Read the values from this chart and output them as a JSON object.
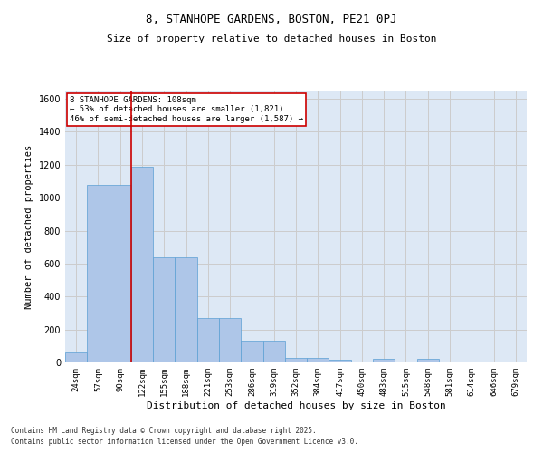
{
  "title1": "8, STANHOPE GARDENS, BOSTON, PE21 0PJ",
  "title2": "Size of property relative to detached houses in Boston",
  "xlabel": "Distribution of detached houses by size in Boston",
  "ylabel": "Number of detached properties",
  "bin_labels": [
    "24sqm",
    "57sqm",
    "90sqm",
    "122sqm",
    "155sqm",
    "188sqm",
    "221sqm",
    "253sqm",
    "286sqm",
    "319sqm",
    "352sqm",
    "384sqm",
    "417sqm",
    "450sqm",
    "483sqm",
    "515sqm",
    "548sqm",
    "581sqm",
    "614sqm",
    "646sqm",
    "679sqm"
  ],
  "bar_values": [
    60,
    1080,
    1080,
    1190,
    640,
    640,
    270,
    270,
    130,
    130,
    30,
    30,
    15,
    0,
    20,
    0,
    20,
    0,
    0,
    0,
    0
  ],
  "bar_color": "#aec6e8",
  "bar_edge_color": "#5a9fd4",
  "vline_pos": 2.5,
  "annotation_text": "8 STANHOPE GARDENS: 108sqm\n← 53% of detached houses are smaller (1,821)\n46% of semi-detached houses are larger (1,587) →",
  "annotation_box_color": "#ffffff",
  "annotation_box_edge": "#cc0000",
  "ylim": [
    0,
    1650
  ],
  "yticks": [
    0,
    200,
    400,
    600,
    800,
    1000,
    1200,
    1400,
    1600
  ],
  "grid_color": "#cccccc",
  "background_color": "#dde8f5",
  "footer1": "Contains HM Land Registry data © Crown copyright and database right 2025.",
  "footer2": "Contains public sector information licensed under the Open Government Licence v3.0."
}
